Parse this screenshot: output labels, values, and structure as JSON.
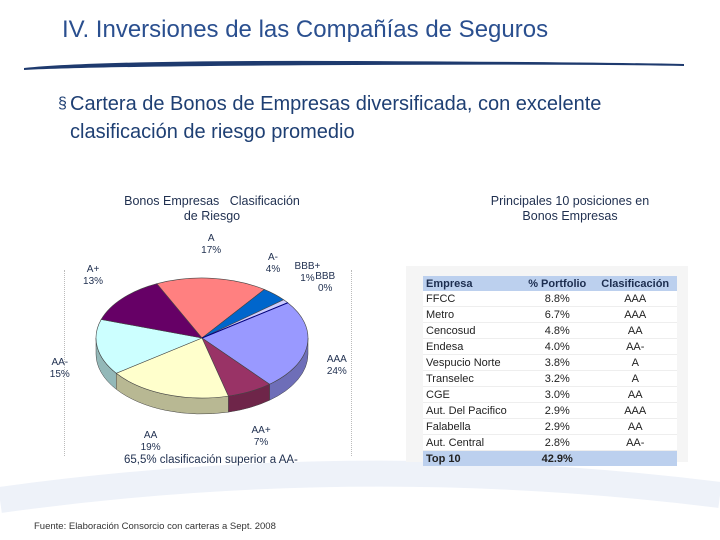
{
  "slide": {
    "title": "IV. Inversiones de las Compañías de Seguros",
    "bullet_mark": "§",
    "bullet": "Cartera de Bonos de Empresas diversificada, con excelente clasificación de riesgo promedio",
    "source": "Fuente: Elaboración Consorcio con carteras a Sept. 2008",
    "colors": {
      "title": "#2a4f8f",
      "rule": "#1e3a6e"
    }
  },
  "pie": {
    "title_line1": "Bonos Empresas   Clasificación",
    "title_line2": "de Riesgo",
    "summary": "65,5% clasificación superior a AA-"
  },
  "chart_data": {
    "type": "pie",
    "slices": [
      {
        "label": "AAA",
        "pct_label": "24%",
        "value": 24,
        "color": "#9999ff"
      },
      {
        "label": "AA+",
        "pct_label": "7%",
        "value": 7,
        "color": "#993366"
      },
      {
        "label": "AA",
        "pct_label": "19%",
        "value": 19,
        "color": "#ffffcc"
      },
      {
        "label": "AA-",
        "pct_label": "15%",
        "value": 15,
        "color": "#ccffff"
      },
      {
        "label": "A+",
        "pct_label": "13%",
        "value": 13,
        "color": "#660066"
      },
      {
        "label": "A",
        "pct_label": "17%",
        "value": 17,
        "color": "#ff8080"
      },
      {
        "label": "A-",
        "pct_label": "4%",
        "value": 4,
        "color": "#0066cc"
      },
      {
        "label": "BBB+",
        "pct_label": "1%",
        "value": 1,
        "color": "#ccccff"
      },
      {
        "label": "BBB",
        "pct_label": "0%",
        "value": 0,
        "color": "#000080"
      }
    ]
  },
  "table": {
    "title_line1": "Principales 10 posiciones en",
    "title_line2": "Bonos Empresas",
    "headers": [
      "Empresa",
      "% Portfolio",
      "Clasificación"
    ],
    "rows": [
      [
        "FFCC",
        "8.8%",
        "AAA"
      ],
      [
        "Metro",
        "6.7%",
        "AAA"
      ],
      [
        "Cencosud",
        "4.8%",
        "AA"
      ],
      [
        "Endesa",
        "4.0%",
        "AA-"
      ],
      [
        "Vespucio Norte",
        "3.8%",
        "A"
      ],
      [
        "Transelec",
        "3.2%",
        "A"
      ],
      [
        "CGE",
        "3.0%",
        "AA"
      ],
      [
        "Aut. Del Pacifico",
        "2.9%",
        "AAA"
      ],
      [
        "Falabella",
        "2.9%",
        "AA"
      ],
      [
        "Aut. Central",
        "2.8%",
        "AA-"
      ]
    ],
    "total": [
      "Top 10",
      "42.9%",
      ""
    ],
    "colors": {
      "header": "#bcd0ee"
    }
  }
}
